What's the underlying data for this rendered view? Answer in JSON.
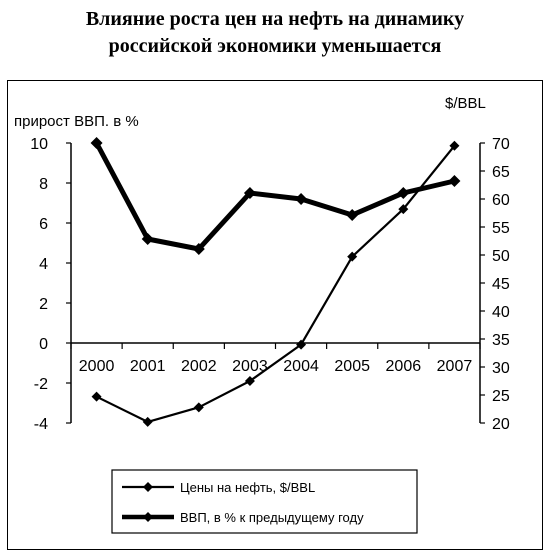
{
  "title_line1": "Влияние роста цен на нефть на динамику",
  "title_line2": "российской экономики уменьшается",
  "chart_data": {
    "type": "line",
    "title": "Влияние роста цен на нефть на динамику российской экономики уменьшается",
    "categories": [
      "2000",
      "2001",
      "2002",
      "2003",
      "2004",
      "2005",
      "2006",
      "2007"
    ],
    "left_axis": {
      "label": "прирост ВВП. в %",
      "range": [
        -4,
        10
      ],
      "ticks": [
        "10",
        "8",
        "6",
        "4",
        "2",
        "0",
        "-2",
        "-4"
      ]
    },
    "right_axis": {
      "label": "$/BBL",
      "range": [
        20,
        70
      ],
      "ticks": [
        "70",
        "65",
        "60",
        "55",
        "50",
        "45",
        "40",
        "35",
        "30",
        "25",
        "20"
      ]
    },
    "series": [
      {
        "name": "Цены на нефть, $/BBL",
        "axis": "right",
        "line_color": "#000000",
        "line_width": "thin",
        "values": [
          24.7,
          20.2,
          22.8,
          27.5,
          34.0,
          49.7,
          58.2,
          69.5
        ]
      },
      {
        "name": "ВВП, в % к предыдущему году",
        "axis": "left",
        "line_color": "#000000",
        "line_width": "thick",
        "values": [
          10.0,
          5.2,
          4.7,
          7.5,
          7.2,
          6.4,
          7.5,
          8.1
        ]
      }
    ],
    "grid": false,
    "legend": "bottom"
  }
}
